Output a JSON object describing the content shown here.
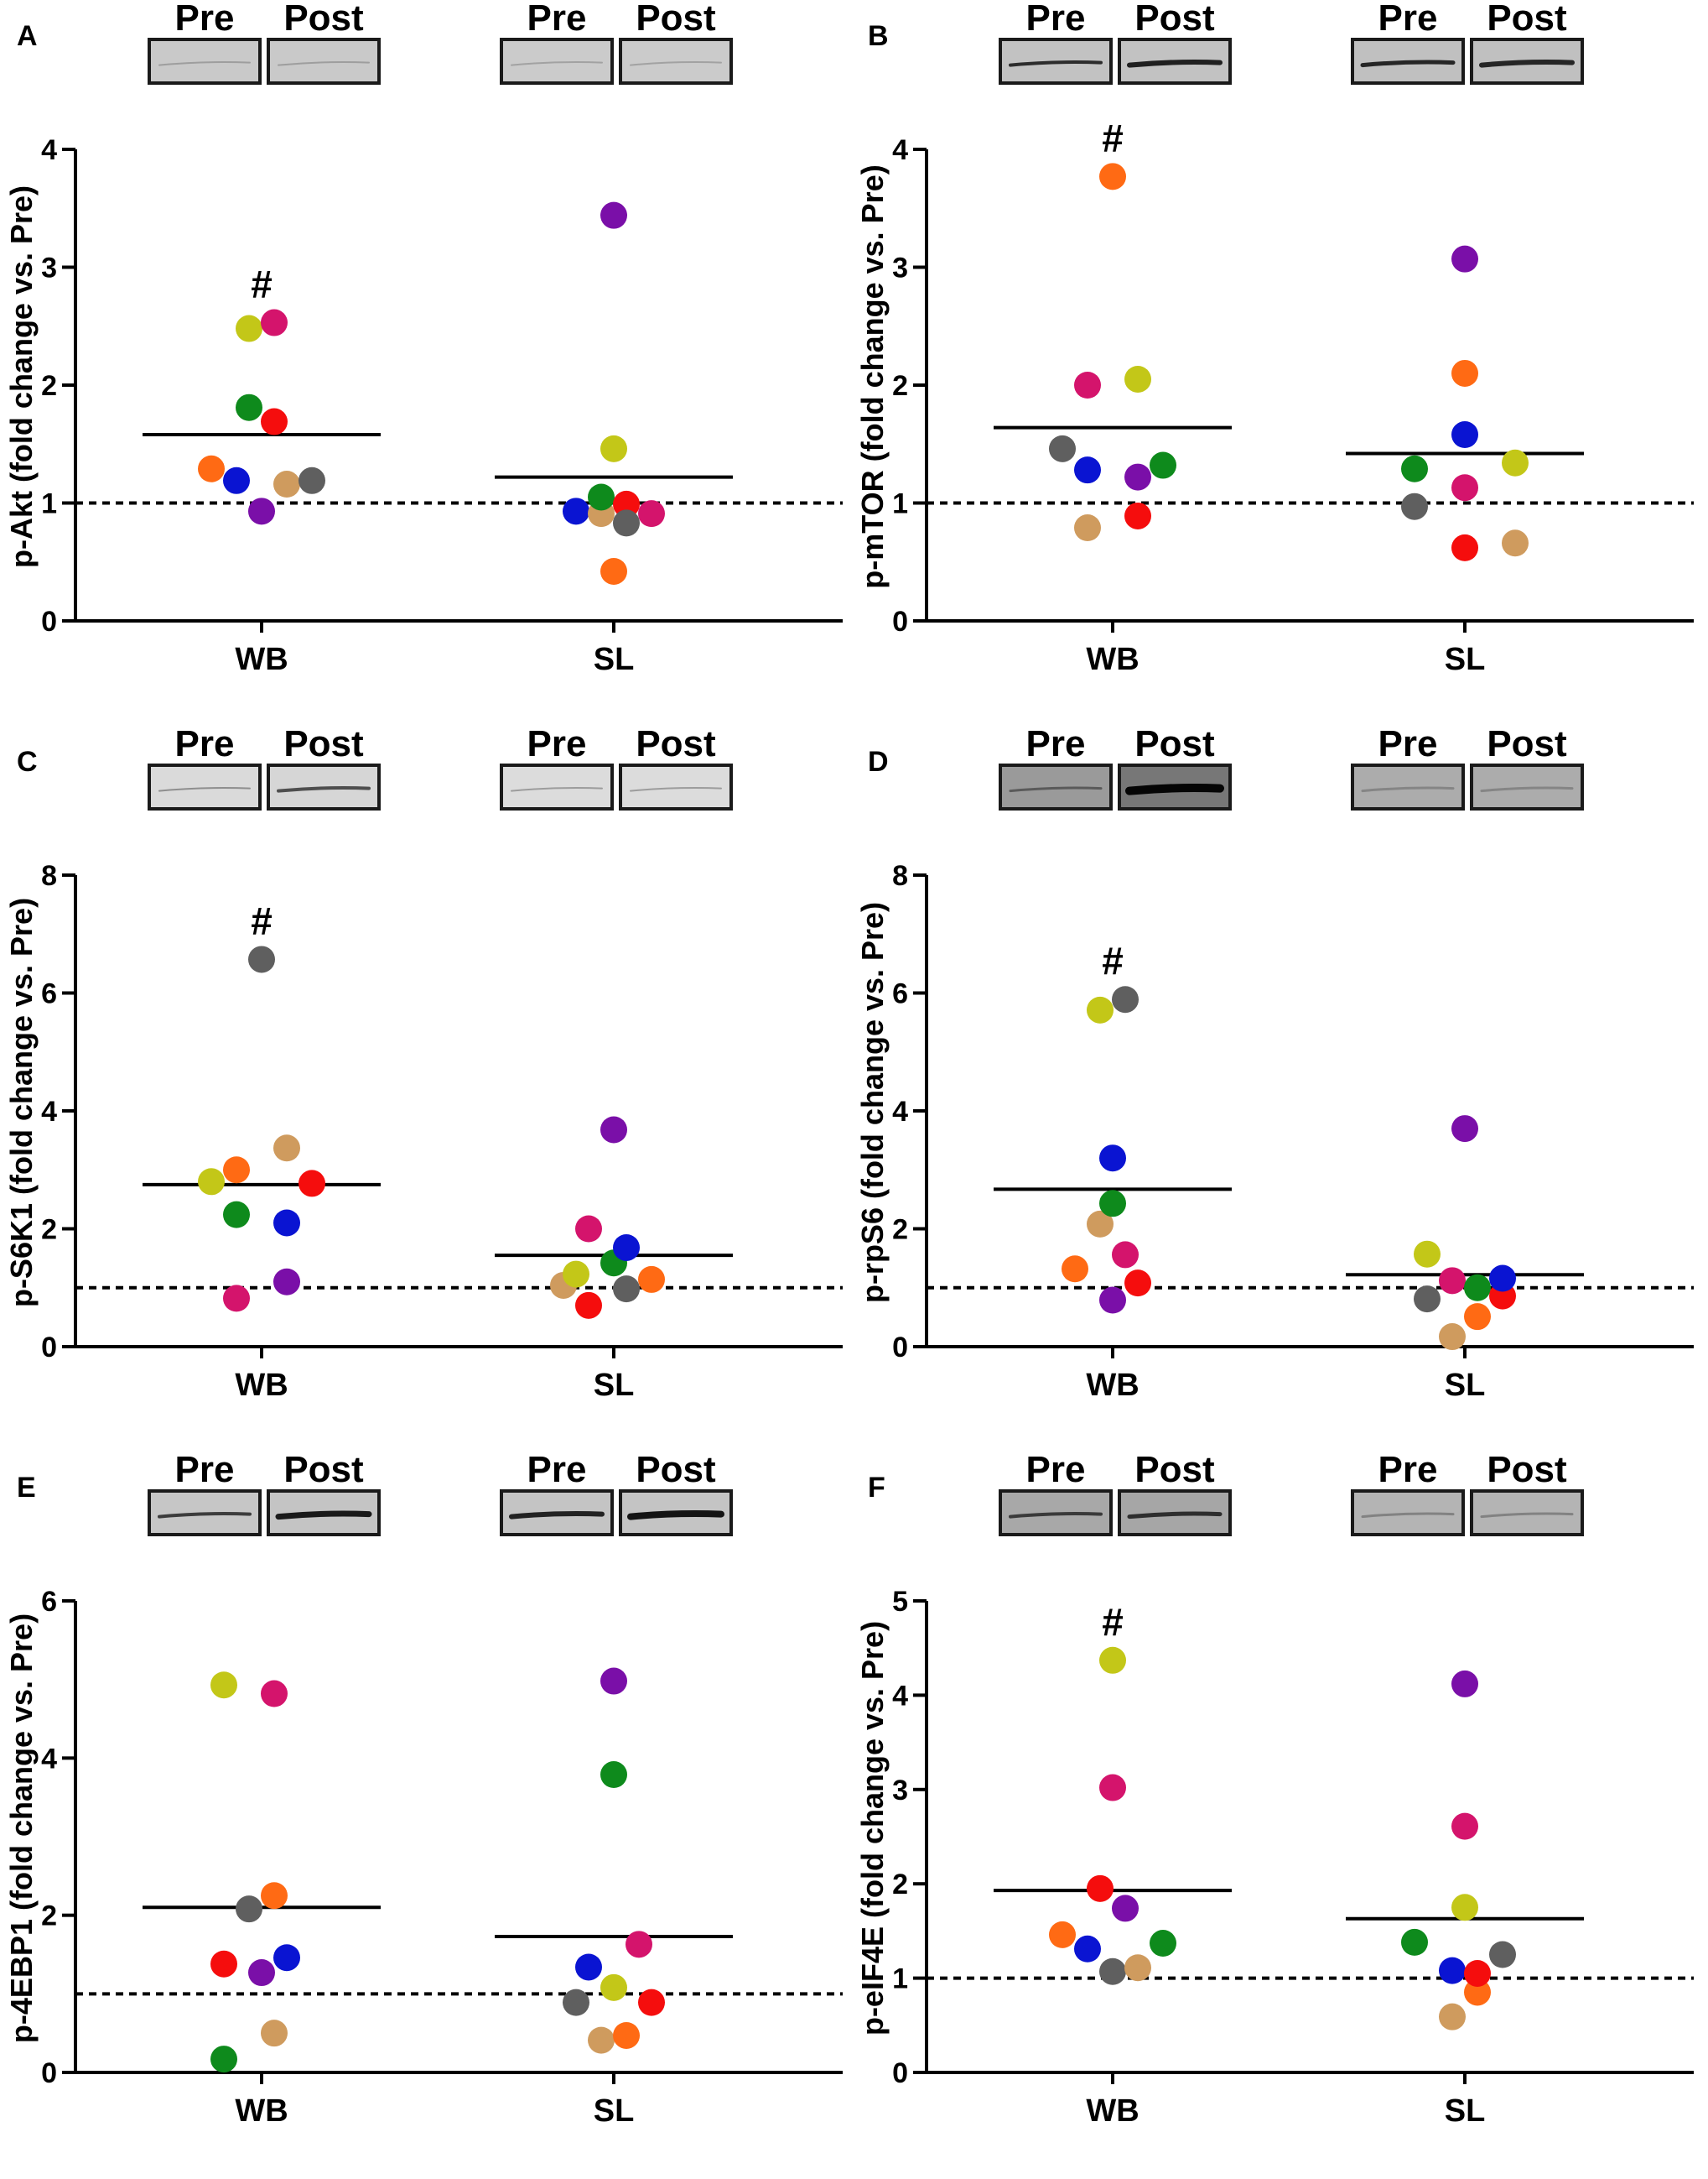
{
  "figure": {
    "blot_pre_label": "Pre",
    "blot_post_label": "Post"
  },
  "colors": {
    "orange": "#ff6a14",
    "blue": "#0a14d2",
    "purple": "#7a0fa8",
    "tan": "#cf9b5e",
    "gray": "#5f5f5f",
    "green": "#0e8a1c",
    "red": "#f50d0d",
    "magenta": "#d4146c",
    "yellow": "#c3c718"
  },
  "chart_data": [
    {
      "panel": "A",
      "type": "scatter",
      "ylabel": "p-Akt (fold change vs. Pre)",
      "categories": [
        "WB",
        "SL"
      ],
      "ylim": [
        0,
        4
      ],
      "yticks": [
        "0",
        "1",
        "2",
        "3",
        "4"
      ],
      "baseline": 1,
      "means": [
        1.58,
        1.22
      ],
      "significance": [
        "#",
        ""
      ],
      "blots": [
        {
          "pre": {
            "bg": "#c9c9c9",
            "band": "#9e9e9e",
            "thick": 2
          },
          "post": {
            "bg": "#c9c9c9",
            "band": "#9e9e9e",
            "thick": 2
          }
        },
        {
          "pre": {
            "bg": "#cbcbcb",
            "band": "#a2a2a2",
            "thick": 2
          },
          "post": {
            "bg": "#cbcbcb",
            "band": "#a2a2a2",
            "thick": 2
          }
        }
      ],
      "points": [
        [
          {
            "color": "orange",
            "x": -0.6,
            "y": 1.29
          },
          {
            "color": "blue",
            "x": -0.3,
            "y": 1.19
          },
          {
            "color": "yellow",
            "x": -0.15,
            "y": 2.48
          },
          {
            "color": "purple",
            "x": 0.0,
            "y": 0.93
          },
          {
            "color": "green",
            "x": -0.15,
            "y": 1.81
          },
          {
            "color": "magenta",
            "x": 0.15,
            "y": 2.53
          },
          {
            "color": "red",
            "x": 0.15,
            "y": 1.69
          },
          {
            "color": "tan",
            "x": 0.3,
            "y": 1.16
          },
          {
            "color": "gray",
            "x": 0.6,
            "y": 1.19
          }
        ],
        [
          {
            "color": "blue",
            "x": -0.45,
            "y": 0.93
          },
          {
            "color": "tan",
            "x": -0.15,
            "y": 0.91
          },
          {
            "color": "green",
            "x": -0.15,
            "y": 1.05
          },
          {
            "color": "yellow",
            "x": 0.0,
            "y": 1.46
          },
          {
            "color": "orange",
            "x": 0.0,
            "y": 0.42
          },
          {
            "color": "purple",
            "x": 0.0,
            "y": 3.44
          },
          {
            "color": "red",
            "x": 0.15,
            "y": 0.99
          },
          {
            "color": "gray",
            "x": 0.15,
            "y": 0.83
          },
          {
            "color": "magenta",
            "x": 0.45,
            "y": 0.91
          }
        ]
      ]
    },
    {
      "panel": "B",
      "type": "scatter",
      "ylabel": "p-mTOR (fold change vs. Pre)",
      "categories": [
        "WB",
        "SL"
      ],
      "ylim": [
        0,
        4
      ],
      "yticks": [
        "0",
        "1",
        "2",
        "3",
        "4"
      ],
      "baseline": 1,
      "means": [
        1.64,
        1.42
      ],
      "significance": [
        "#",
        ""
      ],
      "blots": [
        {
          "pre": {
            "bg": "#c2c2c2",
            "band": "#2c2c2c",
            "thick": 4
          },
          "post": {
            "bg": "#c2c2c2",
            "band": "#202020",
            "thick": 6
          }
        },
        {
          "pre": {
            "bg": "#c0c0c0",
            "band": "#262626",
            "thick": 5
          },
          "post": {
            "bg": "#c0c0c0",
            "band": "#262626",
            "thick": 6
          }
        }
      ],
      "points": [
        [
          {
            "color": "gray",
            "x": -0.6,
            "y": 1.46
          },
          {
            "color": "magenta",
            "x": -0.3,
            "y": 2.0
          },
          {
            "color": "blue",
            "x": -0.3,
            "y": 1.28
          },
          {
            "color": "tan",
            "x": -0.3,
            "y": 0.79
          },
          {
            "color": "orange",
            "x": 0.0,
            "y": 3.77
          },
          {
            "color": "yellow",
            "x": 0.3,
            "y": 2.05
          },
          {
            "color": "purple",
            "x": 0.3,
            "y": 1.22
          },
          {
            "color": "red",
            "x": 0.3,
            "y": 0.89
          },
          {
            "color": "green",
            "x": 0.6,
            "y": 1.32
          }
        ],
        [
          {
            "color": "green",
            "x": -0.6,
            "y": 1.29
          },
          {
            "color": "gray",
            "x": -0.6,
            "y": 0.97
          },
          {
            "color": "purple",
            "x": 0.0,
            "y": 3.07
          },
          {
            "color": "orange",
            "x": 0.0,
            "y": 2.1
          },
          {
            "color": "blue",
            "x": 0.0,
            "y": 1.58
          },
          {
            "color": "magenta",
            "x": 0.0,
            "y": 1.13
          },
          {
            "color": "red",
            "x": 0.0,
            "y": 0.62
          },
          {
            "color": "yellow",
            "x": 0.6,
            "y": 1.34
          },
          {
            "color": "tan",
            "x": 0.6,
            "y": 0.66
          }
        ]
      ]
    },
    {
      "panel": "C",
      "type": "scatter",
      "ylabel": "p-S6K1 (fold change vs. Pre)",
      "categories": [
        "WB",
        "SL"
      ],
      "ylim": [
        0,
        8
      ],
      "yticks": [
        "0",
        "2",
        "4",
        "6",
        "8"
      ],
      "baseline": 1,
      "means": [
        2.75,
        1.55
      ],
      "significance": [
        "#",
        ""
      ],
      "blots": [
        {
          "pre": {
            "bg": "#dadada",
            "band": "#8e8e8e",
            "thick": 2
          },
          "post": {
            "bg": "#d6d6d6",
            "band": "#4e4e4e",
            "thick": 4
          }
        },
        {
          "pre": {
            "bg": "#dcdcdc",
            "band": "#9c9c9c",
            "thick": 2
          },
          "post": {
            "bg": "#dcdcdc",
            "band": "#9c9c9c",
            "thick": 2
          }
        }
      ],
      "points": [
        [
          {
            "color": "yellow",
            "x": -0.6,
            "y": 2.8
          },
          {
            "color": "orange",
            "x": -0.3,
            "y": 3.0
          },
          {
            "color": "green",
            "x": -0.3,
            "y": 2.24
          },
          {
            "color": "magenta",
            "x": -0.3,
            "y": 0.82
          },
          {
            "color": "gray",
            "x": 0.0,
            "y": 6.57
          },
          {
            "color": "tan",
            "x": 0.3,
            "y": 3.37
          },
          {
            "color": "blue",
            "x": 0.3,
            "y": 2.1
          },
          {
            "color": "purple",
            "x": 0.3,
            "y": 1.1
          },
          {
            "color": "red",
            "x": 0.6,
            "y": 2.77
          }
        ],
        [
          {
            "color": "tan",
            "x": -0.6,
            "y": 1.04
          },
          {
            "color": "yellow",
            "x": -0.45,
            "y": 1.23
          },
          {
            "color": "magenta",
            "x": -0.3,
            "y": 2.0
          },
          {
            "color": "red",
            "x": -0.3,
            "y": 0.7
          },
          {
            "color": "purple",
            "x": 0.0,
            "y": 3.68
          },
          {
            "color": "green",
            "x": 0.0,
            "y": 1.42
          },
          {
            "color": "blue",
            "x": 0.15,
            "y": 1.68
          },
          {
            "color": "gray",
            "x": 0.15,
            "y": 0.98
          },
          {
            "color": "orange",
            "x": 0.45,
            "y": 1.14
          }
        ]
      ]
    },
    {
      "panel": "D",
      "type": "scatter",
      "ylabel": "p-rpS6 (fold change vs. Pre)",
      "categories": [
        "WB",
        "SL"
      ],
      "ylim": [
        0,
        8
      ],
      "yticks": [
        "0",
        "2",
        "4",
        "6",
        "8"
      ],
      "baseline": 1,
      "means": [
        2.67,
        1.22
      ],
      "significance": [
        "#",
        ""
      ],
      "blots": [
        {
          "pre": {
            "bg": "#9a9a9a",
            "band": "#5a5a5a",
            "thick": 3
          },
          "post": {
            "bg": "#777777",
            "band": "#050505",
            "thick": 10
          }
        },
        {
          "pre": {
            "bg": "#acacac",
            "band": "#858585",
            "thick": 3
          },
          "post": {
            "bg": "#acacac",
            "band": "#858585",
            "thick": 3
          }
        }
      ],
      "points": [
        [
          {
            "color": "orange",
            "x": -0.45,
            "y": 1.32
          },
          {
            "color": "yellow",
            "x": -0.15,
            "y": 5.71
          },
          {
            "color": "tan",
            "x": -0.15,
            "y": 2.08
          },
          {
            "color": "blue",
            "x": 0.0,
            "y": 3.2
          },
          {
            "color": "green",
            "x": 0.0,
            "y": 2.43
          },
          {
            "color": "purple",
            "x": 0.0,
            "y": 0.79
          },
          {
            "color": "gray",
            "x": 0.15,
            "y": 5.89
          },
          {
            "color": "magenta",
            "x": 0.15,
            "y": 1.56
          },
          {
            "color": "red",
            "x": 0.3,
            "y": 1.08
          }
        ],
        [
          {
            "color": "yellow",
            "x": -0.45,
            "y": 1.57
          },
          {
            "color": "gray",
            "x": -0.45,
            "y": 0.81
          },
          {
            "color": "tan",
            "x": -0.15,
            "y": 0.17
          },
          {
            "color": "magenta",
            "x": -0.15,
            "y": 1.12
          },
          {
            "color": "purple",
            "x": 0.0,
            "y": 3.7
          },
          {
            "color": "green",
            "x": 0.15,
            "y": 1.0
          },
          {
            "color": "orange",
            "x": 0.15,
            "y": 0.51
          },
          {
            "color": "red",
            "x": 0.45,
            "y": 0.86
          },
          {
            "color": "blue",
            "x": 0.45,
            "y": 1.16
          }
        ]
      ]
    },
    {
      "panel": "E",
      "type": "scatter",
      "ylabel": "p-4EBP1 (fold change vs. Pre)",
      "categories": [
        "WB",
        "SL"
      ],
      "ylim": [
        0,
        6
      ],
      "yticks": [
        "0",
        "2",
        "4",
        "6"
      ],
      "baseline": 1,
      "means": [
        2.1,
        1.73
      ],
      "significance": [
        "",
        ""
      ],
      "blots": [
        {
          "pre": {
            "bg": "#c6c6c6",
            "band": "#3c3c3c",
            "thick": 4
          },
          "post": {
            "bg": "#c4c4c4",
            "band": "#1a1a1a",
            "thick": 7
          }
        },
        {
          "pre": {
            "bg": "#c4c4c4",
            "band": "#222222",
            "thick": 6
          },
          "post": {
            "bg": "#c4c4c4",
            "band": "#141414",
            "thick": 8
          }
        }
      ],
      "points": [
        [
          {
            "color": "red",
            "x": -0.45,
            "y": 1.38
          },
          {
            "color": "yellow",
            "x": -0.45,
            "y": 4.93
          },
          {
            "color": "green",
            "x": -0.45,
            "y": 0.17
          },
          {
            "color": "gray",
            "x": -0.15,
            "y": 2.08
          },
          {
            "color": "purple",
            "x": 0.0,
            "y": 1.27
          },
          {
            "color": "magenta",
            "x": 0.15,
            "y": 4.82
          },
          {
            "color": "orange",
            "x": 0.15,
            "y": 2.25
          },
          {
            "color": "tan",
            "x": 0.15,
            "y": 0.5
          },
          {
            "color": "blue",
            "x": 0.3,
            "y": 1.46
          }
        ],
        [
          {
            "color": "gray",
            "x": -0.45,
            "y": 0.89
          },
          {
            "color": "blue",
            "x": -0.3,
            "y": 1.34
          },
          {
            "color": "tan",
            "x": -0.15,
            "y": 0.41
          },
          {
            "color": "purple",
            "x": 0.0,
            "y": 4.98
          },
          {
            "color": "green",
            "x": 0.0,
            "y": 3.79
          },
          {
            "color": "yellow",
            "x": 0.0,
            "y": 1.08
          },
          {
            "color": "orange",
            "x": 0.15,
            "y": 0.47
          },
          {
            "color": "magenta",
            "x": 0.3,
            "y": 1.63
          },
          {
            "color": "red",
            "x": 0.45,
            "y": 0.89
          }
        ]
      ]
    },
    {
      "panel": "F",
      "type": "scatter",
      "ylabel": "p-eIF4E (fold change vs. Pre)",
      "categories": [
        "WB",
        "SL"
      ],
      "ylim": [
        0,
        5
      ],
      "yticks": [
        "0",
        "1",
        "2",
        "3",
        "4",
        "5"
      ],
      "baseline": 1,
      "means": [
        1.93,
        1.63
      ],
      "significance": [
        "#",
        ""
      ],
      "blots": [
        {
          "pre": {
            "bg": "#a8a8a8",
            "band": "#3a3a3a",
            "thick": 4
          },
          "post": {
            "bg": "#a6a6a6",
            "band": "#2e2e2e",
            "thick": 5
          }
        },
        {
          "pre": {
            "bg": "#b4b4b4",
            "band": "#828282",
            "thick": 3
          },
          "post": {
            "bg": "#b4b4b4",
            "band": "#828282",
            "thick": 3
          }
        }
      ],
      "points": [
        [
          {
            "color": "orange",
            "x": -0.6,
            "y": 1.46
          },
          {
            "color": "blue",
            "x": -0.3,
            "y": 1.31
          },
          {
            "color": "red",
            "x": -0.15,
            "y": 1.95
          },
          {
            "color": "magenta",
            "x": 0.0,
            "y": 3.02
          },
          {
            "color": "gray",
            "x": 0.0,
            "y": 1.07
          },
          {
            "color": "yellow",
            "x": 0.0,
            "y": 4.37
          },
          {
            "color": "purple",
            "x": 0.15,
            "y": 1.74
          },
          {
            "color": "tan",
            "x": 0.3,
            "y": 1.11
          },
          {
            "color": "green",
            "x": 0.6,
            "y": 1.37
          }
        ],
        [
          {
            "color": "green",
            "x": -0.6,
            "y": 1.38
          },
          {
            "color": "tan",
            "x": -0.15,
            "y": 0.59
          },
          {
            "color": "blue",
            "x": -0.15,
            "y": 1.08
          },
          {
            "color": "purple",
            "x": 0.0,
            "y": 4.12
          },
          {
            "color": "magenta",
            "x": 0.0,
            "y": 2.61
          },
          {
            "color": "yellow",
            "x": 0.0,
            "y": 1.75
          },
          {
            "color": "orange",
            "x": 0.15,
            "y": 0.85
          },
          {
            "color": "red",
            "x": 0.15,
            "y": 1.05
          },
          {
            "color": "gray",
            "x": 0.45,
            "y": 1.25
          }
        ]
      ]
    }
  ]
}
